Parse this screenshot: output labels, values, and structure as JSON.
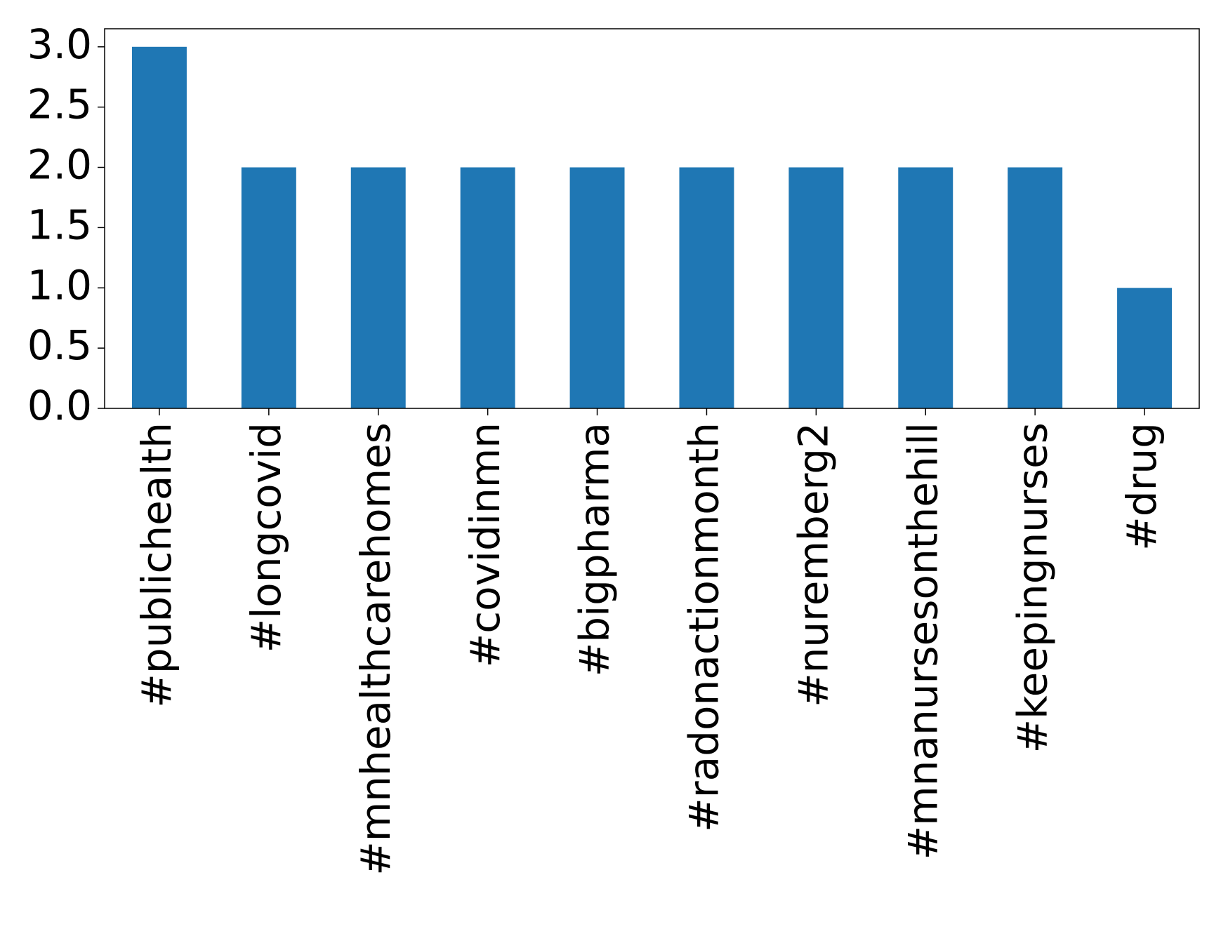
{
  "chart_data": {
    "type": "bar",
    "categories": [
      "#publichealth",
      "#longcovid",
      "#mnhealthcarehomes",
      "#covidinmn",
      "#bigpharma",
      "#radonactionmonth",
      "#nuremberg2",
      "#mnanursesonthehill",
      "#keepingnurses",
      "#drug"
    ],
    "values": [
      3,
      2,
      2,
      2,
      2,
      2,
      2,
      2,
      2,
      1
    ],
    "color": "#1f77b4",
    "ylim": [
      0,
      3.15
    ],
    "yticks": [
      {
        "value": 0,
        "label": "0.0"
      },
      {
        "value": 0.5,
        "label": "0.5"
      },
      {
        "value": 1,
        "label": "1.0"
      },
      {
        "value": 1.5,
        "label": "1.5"
      },
      {
        "value": 2,
        "label": "2.0"
      },
      {
        "value": 2.5,
        "label": "2.5"
      },
      {
        "value": 3,
        "label": "3.0"
      }
    ],
    "grid": false
  }
}
